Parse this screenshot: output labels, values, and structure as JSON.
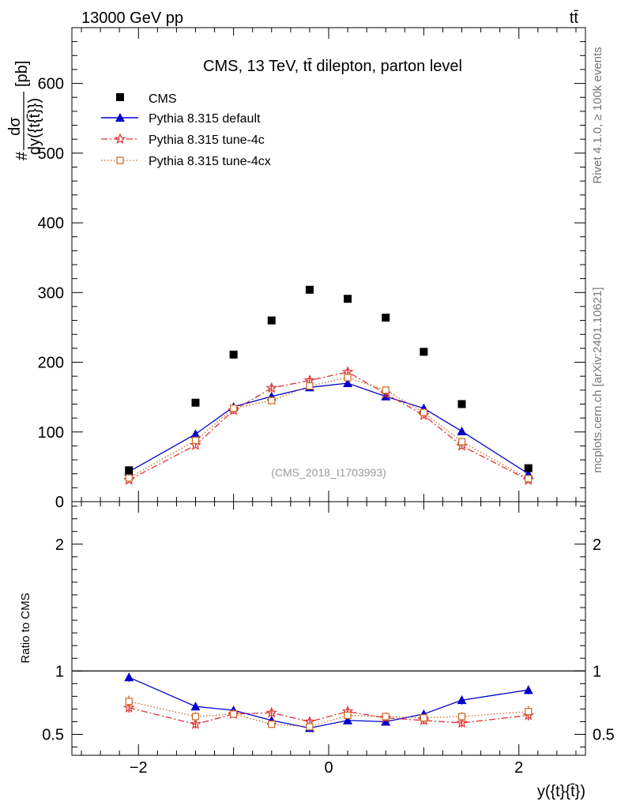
{
  "header": {
    "energy_label": "13000 GeV pp",
    "process_label": "tt̄"
  },
  "side_labels": {
    "rivet": "Rivet 4.1.0, ≥ 100k events",
    "mcplots": "mcplots.cern.ch [arXiv:2401.10621]"
  },
  "chart_data": {
    "type": "scatter",
    "title": "CMS, 13 TeV, tt̄ dilepton, parton level",
    "analysis_id": "(CMS_2018_I1703993)",
    "xlabel": "y({t}{t̄})",
    "ylabel_num": "#dσ",
    "ylabel_frac_num": "dσ",
    "ylabel_frac_den": "dy({t{t̄}})",
    "ylabel_unit": "[pb]",
    "ylabel": "#dσ/dy({t{t̄}}) [pb]",
    "ratio_ylabel": "Ratio to CMS",
    "xlim": [
      -2.7,
      2.7
    ],
    "ylim": [
      0,
      680
    ],
    "ratio_ylim": [
      0.335,
      2.335
    ],
    "x_ticks": [
      -2,
      0,
      2
    ],
    "x_tick_labels": [
      "−2",
      "0",
      "2"
    ],
    "y_ticks": [
      0,
      100,
      200,
      300,
      400,
      500,
      600
    ],
    "y_tick_labels": [
      "0",
      "100",
      "200",
      "300",
      "400",
      "500",
      "600"
    ],
    "ratio_ticks": [
      0.5,
      1,
      2
    ],
    "ratio_tick_labels": [
      "0.5",
      "1",
      "2"
    ],
    "x": [
      -2.1,
      -1.4,
      -1.0,
      -0.6,
      -0.2,
      0.2,
      0.6,
      1.0,
      1.4,
      2.1
    ],
    "series": [
      {
        "name": "CMS",
        "color": "#000000",
        "marker": "square",
        "values": [
          45,
          142,
          211,
          260,
          304,
          291,
          264,
          215,
          140,
          48
        ]
      },
      {
        "name": "Pythia 8.315 default",
        "color": "#0000cc",
        "marker": "triangle",
        "line": "solid",
        "values": [
          43,
          97,
          136,
          151,
          164,
          170,
          151,
          134,
          101,
          40
        ],
        "errors": [
          4,
          4,
          5,
          4,
          4,
          4,
          4,
          4,
          4,
          3
        ],
        "ratio": [
          0.95,
          0.72,
          0.69,
          0.61,
          0.55,
          0.61,
          0.6,
          0.66,
          0.77,
          0.85
        ],
        "ratio_errors": [
          0.035,
          0.03,
          0.03,
          0.025,
          0.02,
          0.02,
          0.02,
          0.03,
          0.035,
          0.035
        ]
      },
      {
        "name": "Pythia 8.315 tune-4c",
        "color": "#dd3333",
        "marker": "star",
        "line": "dashdot",
        "values": [
          31,
          81,
          131,
          163,
          174,
          186,
          155,
          124,
          80,
          31
        ],
        "errors": [
          3,
          4,
          5,
          5,
          5,
          5,
          4,
          4,
          4,
          3
        ],
        "ratio": [
          0.71,
          0.58,
          0.66,
          0.67,
          0.6,
          0.68,
          0.63,
          0.61,
          0.59,
          0.65
        ],
        "ratio_errors": [
          0.04,
          0.035,
          0.03,
          0.025,
          0.025,
          0.025,
          0.025,
          0.03,
          0.035,
          0.04
        ]
      },
      {
        "name": "Pythia 8.315 tune-4cx",
        "color": "#cc6622",
        "marker": "open-square",
        "line": "dotted",
        "values": [
          34,
          88,
          134,
          145,
          166,
          178,
          160,
          128,
          86,
          33
        ],
        "errors": [
          3,
          4,
          5,
          4,
          4,
          4,
          4,
          4,
          4,
          3
        ],
        "ratio": [
          0.76,
          0.64,
          0.66,
          0.58,
          0.56,
          0.65,
          0.64,
          0.63,
          0.64,
          0.68
        ],
        "ratio_errors": [
          0.045,
          0.035,
          0.03,
          0.025,
          0.025,
          0.025,
          0.025,
          0.03,
          0.035,
          0.045
        ]
      }
    ]
  }
}
